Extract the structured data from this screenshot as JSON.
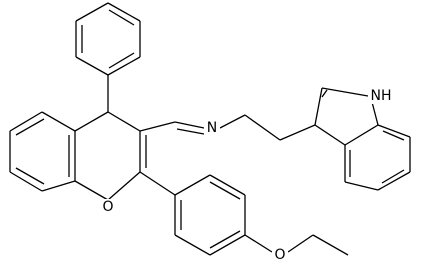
{
  "atoms": [
    {
      "label": "N"
    },
    {
      "label": "NH"
    },
    {
      "label": "O"
    },
    {
      "label": "O"
    }
  ]
}
